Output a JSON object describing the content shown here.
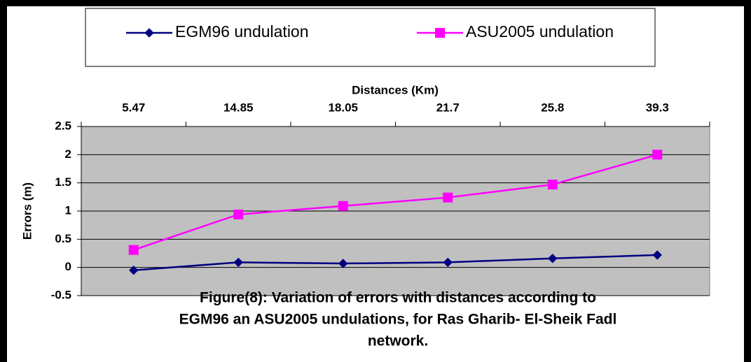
{
  "chart_data": {
    "type": "line",
    "x_label": "Distances (Km)",
    "y_label": "Errors (m)",
    "categories": [
      "5.47",
      "14.85",
      "18.05",
      "21.7",
      "25.8",
      "39.3"
    ],
    "series": [
      {
        "name": "EGM96 undulation",
        "color": "#000080",
        "marker": "diamond",
        "values": [
          -0.05,
          0.09,
          0.07,
          0.09,
          0.16,
          0.22
        ]
      },
      {
        "name": "ASU2005 undulation",
        "color": "#ff00ff",
        "marker": "square",
        "values": [
          0.31,
          0.94,
          1.09,
          1.24,
          1.47,
          2.0
        ]
      }
    ],
    "ylim": [
      -0.5,
      2.5
    ],
    "yticks": [
      -0.5,
      0,
      0.5,
      1,
      1.5,
      2,
      2.5
    ],
    "grid": true,
    "x_axis_position": "top",
    "legend": "top",
    "plot_background": "#c0c0c0",
    "caption": [
      "Figure(8): Variation of errors with distances according to",
      "EGM96 an ASU2005 undulations, for Ras Gharib- El-Sheik Fadl",
      "network."
    ]
  }
}
